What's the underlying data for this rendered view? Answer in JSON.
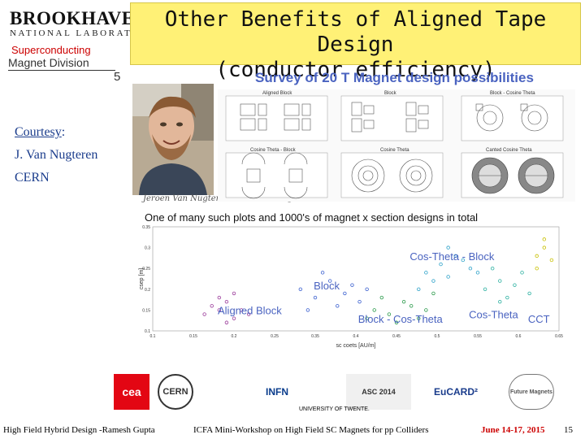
{
  "header": {
    "lab_name": "BROOKHAVEN",
    "lab_sub": "NATIONAL LABORATORY",
    "division_line1": "Superconducting",
    "division_line2": "Magnet Division",
    "slide_small_number": "5",
    "title_line1": "Other Benefits of Aligned Tape Design",
    "title_line2": "(conductor efficiency)"
  },
  "survey_title": "Survey of 20 T Magnet design possibilities",
  "courtesy": {
    "label": "Courtesy",
    "colon": ":",
    "name": "J. Van Nugteren",
    "org": "CERN"
  },
  "photo_caption": "Jeroen Van Nugteren  PhD student @ CERN",
  "design_panels": [
    "Aligned Block",
    "Block",
    "Block - Cosine Theta",
    "Cosine Theta - Block",
    "Cosine Theta",
    "Canted Cosine Theta"
  ],
  "chart_data": {
    "type": "scatter",
    "title": "One of many such plots and 1000's of magnet x section designs in total",
    "xlabel": "sc coets [AU/m]",
    "ylabel": "csep [m]",
    "xlim": [
      0.1,
      0.65
    ],
    "ylim": [
      0.1,
      0.35
    ],
    "xticks": [
      "0.1",
      "0.15",
      "0.2",
      "0.25",
      "0.35",
      "0.4",
      "0.45",
      "0.5",
      "0.55",
      "0.6",
      "0.65"
    ],
    "yticks": [
      "0.35",
      "0.3",
      "0.25",
      "0.2",
      "0.15",
      "0.1"
    ],
    "clusters": [
      {
        "name": "Aligned Block",
        "color": "#9a3a9a",
        "x": [
          0.17,
          0.18,
          0.19,
          0.2,
          0.21,
          0.22,
          0.23,
          0.2,
          0.19,
          0.21
        ],
        "y": [
          0.14,
          0.16,
          0.15,
          0.17,
          0.13,
          0.15,
          0.14,
          0.12,
          0.18,
          0.19
        ]
      },
      {
        "name": "Block",
        "color": "#3a5fcf",
        "x": [
          0.3,
          0.32,
          0.34,
          0.36,
          0.38,
          0.33,
          0.35,
          0.37,
          0.31,
          0.39
        ],
        "y": [
          0.2,
          0.18,
          0.22,
          0.19,
          0.17,
          0.24,
          0.16,
          0.21,
          0.15,
          0.2
        ]
      },
      {
        "name": "Block - Cos-Theta",
        "color": "#2a9a4a",
        "x": [
          0.4,
          0.42,
          0.44,
          0.46,
          0.41,
          0.43,
          0.45,
          0.47,
          0.48,
          0.39
        ],
        "y": [
          0.15,
          0.14,
          0.17,
          0.13,
          0.18,
          0.12,
          0.16,
          0.15,
          0.19,
          0.13
        ]
      },
      {
        "name": "Cos-Theta - Block",
        "color": "#2aa0c8",
        "x": [
          0.47,
          0.49,
          0.5,
          0.51,
          0.53,
          0.48,
          0.52,
          0.5,
          0.46,
          0.54
        ],
        "y": [
          0.24,
          0.26,
          0.23,
          0.28,
          0.25,
          0.22,
          0.27,
          0.3,
          0.2,
          0.24
        ]
      },
      {
        "name": "Cos-Theta",
        "color": "#2ab0a0",
        "x": [
          0.55,
          0.57,
          0.58,
          0.6,
          0.56,
          0.59,
          0.61,
          0.57
        ],
        "y": [
          0.2,
          0.22,
          0.18,
          0.24,
          0.25,
          0.21,
          0.19,
          0.17
        ]
      },
      {
        "name": "CCT",
        "color": "#c8c000",
        "x": [
          0.62,
          0.63,
          0.64,
          0.62,
          0.63
        ],
        "y": [
          0.28,
          0.3,
          0.27,
          0.25,
          0.32
        ]
      }
    ],
    "annotations": [
      {
        "text": "Aligned Block",
        "color": "#4a63c0"
      },
      {
        "text": "Block",
        "color": "#4a63c0"
      },
      {
        "text": "Cos-Theta - Block",
        "color": "#4a63c0"
      },
      {
        "text": "Block - Cos-Theta",
        "color": "#4a63c0"
      },
      {
        "text": "Cos-Theta",
        "color": "#4a63c0"
      },
      {
        "text": "CCT",
        "color": "#4a63c0"
      }
    ]
  },
  "footer_logos": [
    "cea",
    "CERN",
    "INFN",
    "ASC 2014",
    "UNIVERSITY OF TWENTE.",
    "EuCARD²",
    "Future Magnets"
  ],
  "footer": {
    "left": "High Field Hybrid Design  -Ramesh Gupta",
    "center": "ICFA Mini-Workshop on High Field SC Magnets for pp Colliders",
    "date": "June 14-17, 2015",
    "page": "15"
  }
}
